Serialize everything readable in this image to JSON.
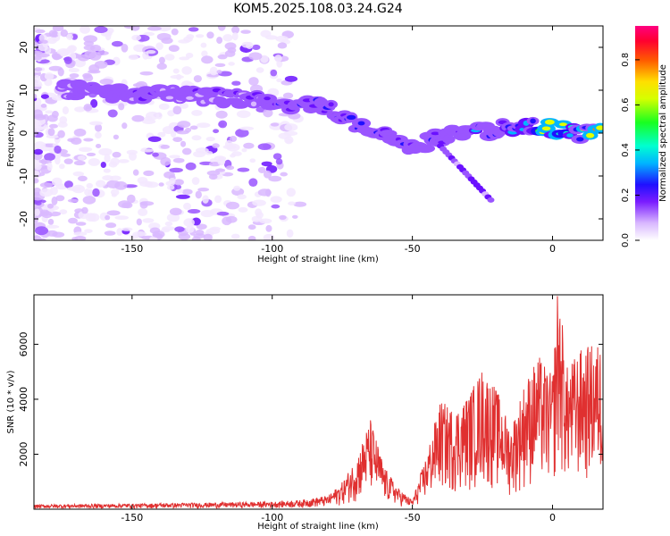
{
  "title": "KOM5.2025.108.03.24.G24",
  "chart_data": [
    {
      "type": "heatmap",
      "xlabel": "Height of straight line (km)",
      "ylabel": "Frequency (Hz)",
      "xlim": [
        -185,
        18
      ],
      "ylim": [
        -25,
        25
      ],
      "xticks": [
        -150,
        -100,
        -50,
        0
      ],
      "yticks": [
        -20,
        -10,
        0,
        10,
        20
      ],
      "colorbar": {
        "label": "Normalized spectral amplitude",
        "range": [
          0,
          0.95
        ],
        "ticks": [
          0,
          0.2,
          0.4,
          0.6,
          0.8
        ]
      },
      "ridge": {
        "x": [
          -170,
          -150,
          -130,
          -110,
          -95,
          -85,
          -78,
          -70,
          -62,
          -55,
          -48,
          -40,
          -30,
          -20,
          -10,
          0,
          10,
          18
        ],
        "y": [
          10,
          9,
          9,
          8,
          7,
          7,
          5,
          2,
          0,
          -2,
          -3,
          -1,
          0,
          1,
          2,
          1,
          0,
          1
        ]
      }
    },
    {
      "type": "line",
      "xlabel": "Height of straight line (km)",
      "ylabel": "SNR (10 * v/v)",
      "xlim": [
        -185,
        18
      ],
      "ylim": [
        0,
        7800
      ],
      "xticks": [
        -150,
        -100,
        -50,
        0
      ],
      "yticks": [
        2000,
        4000,
        6000
      ],
      "color": "#e03030",
      "envelope": {
        "x": [
          -185,
          -150,
          -120,
          -100,
          -90,
          -80,
          -75,
          -70,
          -65,
          -60,
          -55,
          -50,
          -45,
          -40,
          -35,
          -30,
          -25,
          -20,
          -15,
          -10,
          -5,
          0,
          2,
          5,
          10,
          15,
          18
        ],
        "y": [
          150,
          180,
          220,
          250,
          300,
          450,
          900,
          1700,
          3000,
          1400,
          700,
          300,
          1800,
          3600,
          3300,
          3800,
          4700,
          4000,
          2700,
          4200,
          5100,
          4400,
          7700,
          4700,
          5300,
          5500,
          5500
        ]
      }
    }
  ]
}
